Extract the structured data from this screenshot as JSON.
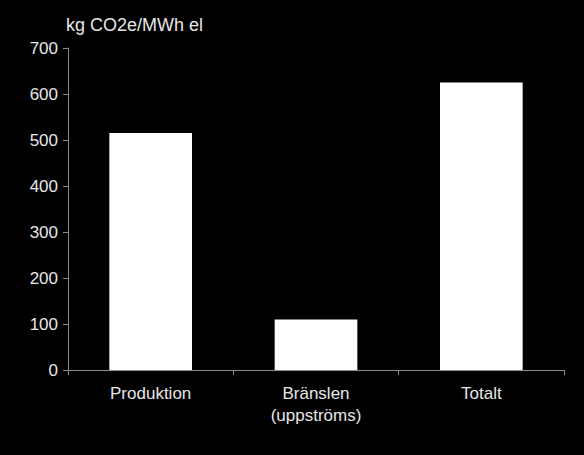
{
  "chart_data": {
    "type": "bar",
    "ylabel": "kg CO2e/MWh el",
    "categories": [
      "Produktion",
      "Bränslen\n(uppströms)",
      "Totalt"
    ],
    "values": [
      515,
      110,
      625
    ],
    "color": "#ffffff",
    "ylim": [
      0,
      700
    ],
    "yticks": [
      0,
      100,
      200,
      300,
      400,
      500,
      600,
      700
    ],
    "grid": false
  }
}
